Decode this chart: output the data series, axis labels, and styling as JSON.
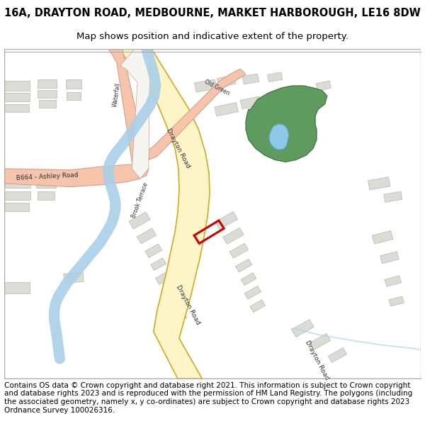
{
  "title": "16A, DRAYTON ROAD, MEDBOURNE, MARKET HARBOROUGH, LE16 8DW",
  "subtitle": "Map shows position and indicative extent of the property.",
  "footer": "Contains OS data © Crown copyright and database right 2021. This information is subject to Crown copyright and database rights 2023 and is reproduced with the permission of HM Land Registry. The polygons (including the associated geometry, namely x, y co-ordinates) are subject to Crown copyright and database rights 2023 Ordnance Survey 100026316.",
  "map_bg": "#f5f5f2",
  "road_yellow": "#fdf5c8",
  "road_yellow_border": "#d4a820",
  "road_salmon": "#f5c4aa",
  "road_salmon_border": "#d0a090",
  "river_blue": "#aad0e8",
  "green_area": "#5f9a5f",
  "pond_blue": "#8ec8e8",
  "building_gray": "#dcdcd6",
  "building_outline": "#b8b8b0",
  "red_plot": "#cc0000",
  "title_fontsize": 10.5,
  "subtitle_fontsize": 9.5,
  "footer_fontsize": 7.5,
  "text_color": "#333333"
}
